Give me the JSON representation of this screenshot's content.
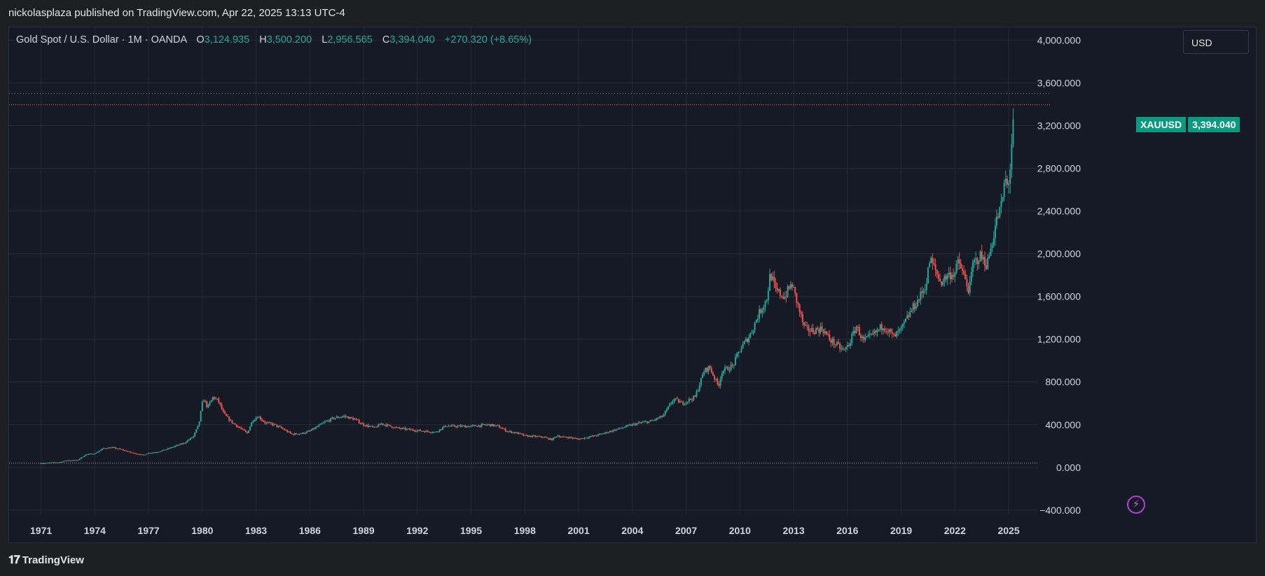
{
  "header": {
    "published_text": "nickolasplaza published on TradingView.com, Apr 22, 2025 13:13 UTC-4"
  },
  "legend": {
    "instrument": "Gold Spot / U.S. Dollar · 1M · OANDA",
    "o_label": "O",
    "o_value": "3,124.935",
    "h_label": "H",
    "h_value": "3,500.200",
    "l_label": "L",
    "l_value": "2,956.565",
    "c_label": "C",
    "c_value": "3,394.040",
    "change": "+270.320 (+8.65%)"
  },
  "currency_button": "USD",
  "price_tag": {
    "symbol": "XAUUSD",
    "price": "3,394.040"
  },
  "footer": {
    "brand": "TradingView",
    "logo": "tv-logo-icon"
  },
  "bolt_icon": "lightning-icon",
  "colors": {
    "up": "#26a69a",
    "down": "#ef5350",
    "price_line": "#ef5350",
    "background": "#161a25",
    "grid": "#252a36",
    "badge": "#c65ee8"
  },
  "chart_data": {
    "type": "candlestick",
    "title": "Gold Spot / U.S. Dollar",
    "interval": "1M",
    "source": "OANDA",
    "x_axis": {
      "type": "time",
      "range": [
        1970.0,
        2026.6
      ],
      "tick_labels": [
        "1971",
        "1974",
        "1977",
        "1980",
        "1983",
        "1986",
        "1989",
        "1992",
        "1995",
        "1998",
        "2001",
        "2004",
        "2007",
        "2010",
        "2013",
        "2016",
        "2019",
        "2022",
        "2025"
      ]
    },
    "y_axis": {
      "range": [
        -440,
        4120
      ],
      "ticks": [
        -400,
        0,
        400,
        800,
        1200,
        1600,
        2000,
        2400,
        2800,
        3200,
        3600,
        4000
      ],
      "tick_labels": [
        "−400.000",
        "0.000",
        "400.000",
        "800.000",
        "1,200.000",
        "1,600.000",
        "2,000.000",
        "2,400.000",
        "2,800.000",
        "3,200.000",
        "3,600.000",
        "4,000.000"
      ]
    },
    "grid": true,
    "last_price": 3394.04,
    "price_series": [
      [
        1971.0,
        38
      ],
      [
        1972.0,
        48
      ],
      [
        1972.5,
        66
      ],
      [
        1973.0,
        65
      ],
      [
        1973.5,
        120
      ],
      [
        1974.0,
        130
      ],
      [
        1974.5,
        180
      ],
      [
        1975.0,
        185
      ],
      [
        1975.5,
        166
      ],
      [
        1976.0,
        140
      ],
      [
        1976.7,
        115
      ],
      [
        1977.0,
        135
      ],
      [
        1977.5,
        145
      ],
      [
        1978.0,
        170
      ],
      [
        1978.5,
        200
      ],
      [
        1979.0,
        230
      ],
      [
        1979.5,
        290
      ],
      [
        1979.8,
        400
      ],
      [
        1980.05,
        650
      ],
      [
        1980.3,
        560
      ],
      [
        1980.6,
        660
      ],
      [
        1980.9,
        620
      ],
      [
        1981.2,
        500
      ],
      [
        1981.6,
        430
      ],
      [
        1982.0,
        380
      ],
      [
        1982.5,
        320
      ],
      [
        1982.8,
        440
      ],
      [
        1983.1,
        480
      ],
      [
        1983.5,
        420
      ],
      [
        1984.0,
        400
      ],
      [
        1984.5,
        360
      ],
      [
        1985.0,
        310
      ],
      [
        1985.6,
        320
      ],
      [
        1986.0,
        340
      ],
      [
        1986.8,
        420
      ],
      [
        1987.3,
        460
      ],
      [
        1987.9,
        480
      ],
      [
        1988.5,
        450
      ],
      [
        1989.0,
        400
      ],
      [
        1989.6,
        370
      ],
      [
        1990.0,
        410
      ],
      [
        1990.6,
        380
      ],
      [
        1991.0,
        365
      ],
      [
        1992.0,
        345
      ],
      [
        1992.7,
        335
      ],
      [
        1993.0,
        330
      ],
      [
        1993.6,
        390
      ],
      [
        1994.0,
        385
      ],
      [
        1995.0,
        385
      ],
      [
        1996.0,
        400
      ],
      [
        1996.5,
        385
      ],
      [
        1997.0,
        340
      ],
      [
        1997.6,
        320
      ],
      [
        1998.0,
        295
      ],
      [
        1999.0,
        285
      ],
      [
        1999.5,
        260
      ],
      [
        1999.8,
        300
      ],
      [
        2000.0,
        285
      ],
      [
        2000.5,
        280
      ],
      [
        2001.0,
        265
      ],
      [
        2002.0,
        300
      ],
      [
        2003.0,
        350
      ],
      [
        2003.8,
        390
      ],
      [
        2004.5,
        420
      ],
      [
        2005.0,
        430
      ],
      [
        2005.7,
        480
      ],
      [
        2006.3,
        640
      ],
      [
        2006.8,
        600
      ],
      [
        2007.5,
        660
      ],
      [
        2008.0,
        900
      ],
      [
        2008.3,
        940
      ],
      [
        2008.8,
        760
      ],
      [
        2009.0,
        900
      ],
      [
        2009.6,
        950
      ],
      [
        2010.0,
        1100
      ],
      [
        2010.6,
        1250
      ],
      [
        2011.0,
        1420
      ],
      [
        2011.5,
        1580
      ],
      [
        2011.7,
        1820
      ],
      [
        2012.0,
        1650
      ],
      [
        2012.5,
        1600
      ],
      [
        2012.9,
        1720
      ],
      [
        2013.3,
        1480
      ],
      [
        2013.6,
        1300
      ],
      [
        2014.0,
        1280
      ],
      [
        2014.6,
        1300
      ],
      [
        2015.0,
        1200
      ],
      [
        2015.8,
        1090
      ],
      [
        2016.1,
        1160
      ],
      [
        2016.5,
        1320
      ],
      [
        2016.9,
        1180
      ],
      [
        2017.5,
        1250
      ],
      [
        2018.0,
        1330
      ],
      [
        2018.6,
        1220
      ],
      [
        2019.0,
        1290
      ],
      [
        2019.6,
        1480
      ],
      [
        2020.0,
        1580
      ],
      [
        2020.4,
        1720
      ],
      [
        2020.6,
        1950
      ],
      [
        2020.9,
        1850
      ],
      [
        2021.2,
        1730
      ],
      [
        2021.6,
        1800
      ],
      [
        2022.0,
        1820
      ],
      [
        2022.2,
        1930
      ],
      [
        2022.8,
        1650
      ],
      [
        2023.0,
        1900
      ],
      [
        2023.4,
        1980
      ],
      [
        2023.8,
        1900
      ],
      [
        2024.0,
        2050
      ],
      [
        2024.3,
        2300
      ],
      [
        2024.6,
        2450
      ],
      [
        2024.8,
        2700
      ],
      [
        2024.95,
        2620
      ],
      [
        2025.1,
        2830
      ],
      [
        2025.2,
        3120
      ],
      [
        2025.3,
        3394
      ]
    ]
  }
}
